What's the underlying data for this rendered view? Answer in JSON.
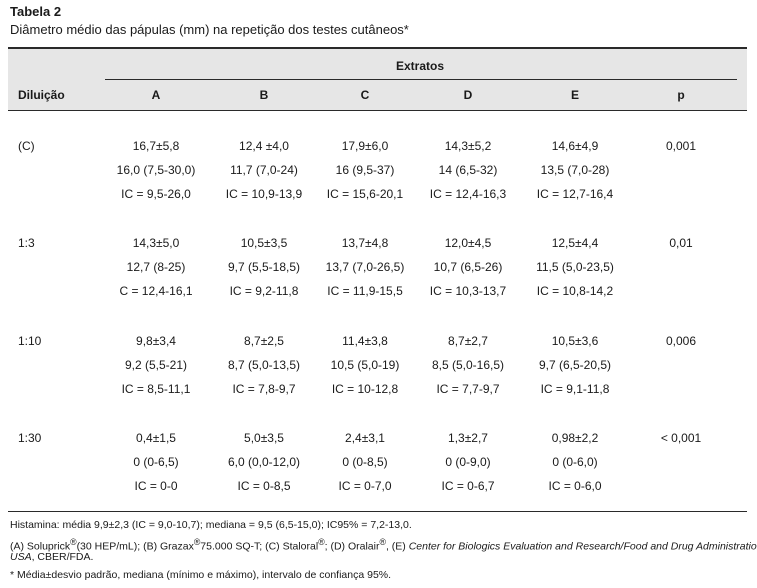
{
  "title": "Tabela 2",
  "subtitle": "Diâmetro médio das pápulas (mm) na repetição dos testes cutâneos*",
  "header": {
    "group_label": "Extratos",
    "dilution_label": "Diluição",
    "columns": [
      "A",
      "B",
      "C",
      "D",
      "E"
    ],
    "p_label": "p"
  },
  "rows": [
    {
      "dilution": "(C)",
      "p": "0,001",
      "cells": [
        [
          "16,7±5,8",
          "16,0 (7,5-30,0)",
          "IC = 9,5-26,0"
        ],
        [
          "12,4 ±4,0",
          "11,7 (7,0-24)",
          "IC = 10,9-13,9"
        ],
        [
          "17,9±6,0",
          "16 (9,5-37)",
          "IC = 15,6-20,1"
        ],
        [
          "14,3±5,2",
          "14 (6,5-32)",
          "IC = 12,4-16,3"
        ],
        [
          "14,6±4,9",
          "13,5 (7,0-28)",
          "IC = 12,7-16,4"
        ]
      ]
    },
    {
      "dilution": "1:3",
      "p": "0,01",
      "cells": [
        [
          "14,3±5,0",
          "12,7 (8-25)",
          "C = 12,4-16,1"
        ],
        [
          "10,5±3,5",
          "9,7 (5,5-18,5)",
          "IC = 9,2-11,8"
        ],
        [
          "13,7±4,8",
          "13,7 (7,0-26,5)",
          "IC = 11,9-15,5"
        ],
        [
          "12,0±4,5",
          "10,7 (6,5-26)",
          "IC = 10,3-13,7"
        ],
        [
          "12,5±4,4",
          "11,5 (5,0-23,5)",
          "IC = 10,8-14,2"
        ]
      ]
    },
    {
      "dilution": "1:10",
      "p": "0,006",
      "cells": [
        [
          "9,8±3,4",
          "9,2 (5,5-21)",
          "IC = 8,5-11,1"
        ],
        [
          "8,7±2,5",
          "8,7 (5,0-13,5)",
          "IC = 7,8-9,7"
        ],
        [
          "11,4±3,8",
          "10,5 (5,0-19)",
          "IC = 10-12,8"
        ],
        [
          "8,7±2,7",
          "8,5 (5,0-16,5)",
          "IC = 7,7-9,7"
        ],
        [
          "10,5±3,6",
          "9,7 (6,5-20,5)",
          "IC = 9,1-11,8"
        ]
      ]
    },
    {
      "dilution": "1:30",
      "p": "< 0,001",
      "cells": [
        [
          "0,4±1,5",
          "0 (0-6,5)",
          "IC = 0-0"
        ],
        [
          "5,0±3,5",
          "6,0 (0,0-12,0)",
          "IC = 0-8,5"
        ],
        [
          "2,4±3,1",
          "0 (0-8,5)",
          "IC = 0-7,0"
        ],
        [
          "1,3±2,7",
          "0 (0-9,0)",
          "IC = 0-6,7"
        ],
        [
          "0,98±2,2",
          "0 (0-6,0)",
          "IC = 0-6,0"
        ]
      ]
    }
  ],
  "footnotes": {
    "histamina": "Histamina: média 9,9±2,3 (IC = 9,0-10,7); mediana = 9,5 (6,5-15,0); IC95% = 7,2-13,0.",
    "legend_line1_a": "(A) Soluprick",
    "legend_line1_b": "(30 HEP/mL); (B) Grazax",
    "legend_line1_c": "75.000 SQ-T; (C) Staloral",
    "legend_line1_d": "; (D) Oralair",
    "legend_line1_e": ", (E) ",
    "legend_line1_italic": "Center for Biologics Evaluation and Research/Food and Drug Administration",
    "legend_line2_italic": "USA",
    "legend_line2_rest": ", CBER/FDA.",
    "registered": "®",
    "asterisk_note": "* Média±desvio padrão, mediana (mínimo e máximo), intervalo de confiança 95%."
  }
}
